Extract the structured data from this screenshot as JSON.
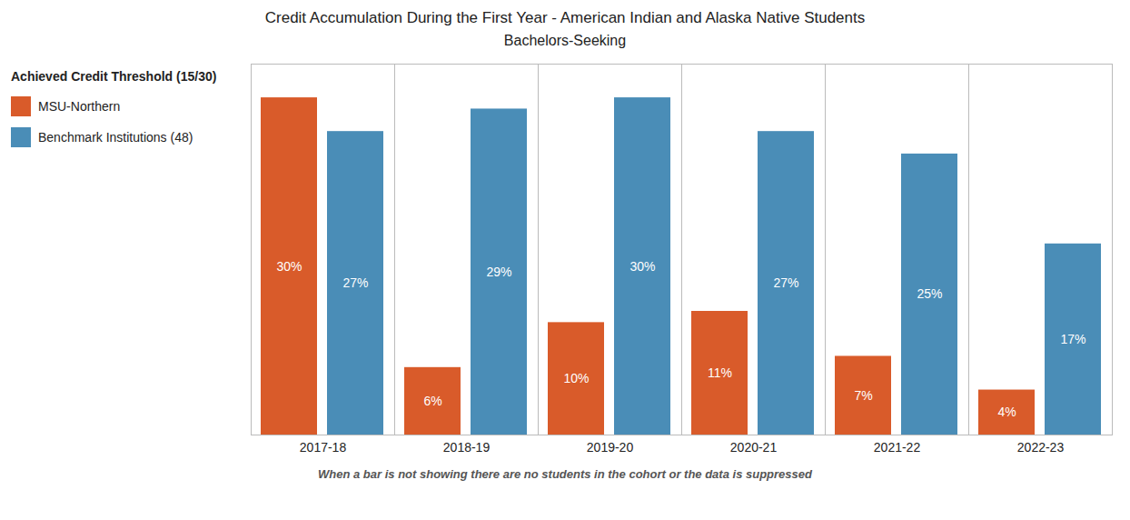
{
  "chart_data": {
    "type": "bar",
    "title": "Credit Accumulation During the First Year - American Indian and Alaska Native Students",
    "subtitle": "Bachelors-Seeking",
    "legend_title": "Achieved Credit Threshold (15/30)",
    "caption": "When a bar is not showing there are no students in the cohort or the data is suppressed",
    "categories": [
      "2017-18",
      "2018-19",
      "2019-20",
      "2020-21",
      "2021-22",
      "2022-23"
    ],
    "series": [
      {
        "name": "MSU-Northern",
        "color": "#D95B2A",
        "values": [
          30,
          6,
          10,
          11,
          7,
          4
        ],
        "value_labels": [
          "30%",
          "6%",
          "10%",
          "11%",
          "7%",
          "4%"
        ]
      },
      {
        "name": "Benchmark Institutions (48)",
        "color": "#4A8DB7",
        "values": [
          27,
          29,
          30,
          27,
          25,
          17
        ],
        "value_labels": [
          "27%",
          "29%",
          "30%",
          "27%",
          "25%",
          "17%"
        ]
      }
    ],
    "ylim": [
      0,
      33
    ],
    "legend": "upper left",
    "data_labels": true,
    "tick_labels": "x",
    "grid": false
  }
}
